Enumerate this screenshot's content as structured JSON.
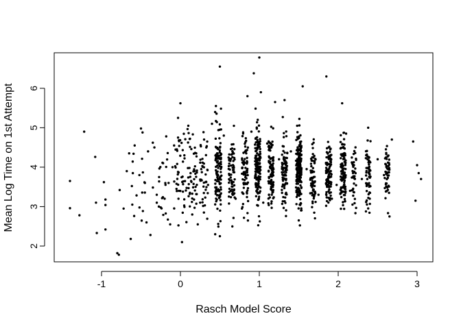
{
  "chart_data": {
    "type": "scatter",
    "title": "",
    "xlabel": "Rasch Model Score",
    "ylabel": "Mean Log Time on 1st Attempt",
    "xlim": [
      -1.6,
      3.2
    ],
    "ylim": [
      1.6,
      6.9
    ],
    "x_ticks": [
      -1,
      0,
      1,
      2,
      3
    ],
    "y_ticks": [
      2,
      3,
      4,
      5,
      6
    ],
    "x_tick_labels": [
      "-1",
      "0",
      "1",
      "2",
      "3"
    ],
    "y_tick_labels": [
      "2",
      "3",
      "4",
      "5",
      "6"
    ],
    "grid": false,
    "legend": "none",
    "point_color": "#000000",
    "points": [
      [
        -1.4,
        3.65
      ],
      [
        -1.4,
        2.96
      ],
      [
        -1.28,
        2.78
      ],
      [
        -1.22,
        4.9
      ],
      [
        -1.08,
        4.26
      ],
      [
        -1.07,
        3.1
      ],
      [
        -1.06,
        2.33
      ],
      [
        -0.97,
        3.62
      ],
      [
        -0.95,
        2.42
      ],
      [
        -0.95,
        3.18
      ],
      [
        -0.95,
        3.04
      ],
      [
        -0.8,
        1.82
      ],
      [
        -0.78,
        1.78
      ],
      [
        -0.77,
        3.42
      ],
      [
        -0.72,
        2.95
      ],
      [
        -0.68,
        3.9
      ],
      [
        -0.65,
        4.35
      ],
      [
        -0.63,
        2.18
      ],
      [
        -0.61,
        3.05
      ],
      [
        -0.58,
        4.55
      ],
      [
        -0.52,
        3.8
      ],
      [
        -0.5,
        4.98
      ],
      [
        -0.48,
        4.88
      ],
      [
        -0.45,
        3.6
      ],
      [
        -0.43,
        2.6
      ],
      [
        -0.41,
        4.4
      ],
      [
        -0.38,
        2.28
      ],
      [
        -0.35,
        4.62
      ],
      [
        -0.33,
        4.5
      ],
      [
        -0.3,
        3.3
      ],
      [
        -0.27,
        3.75
      ],
      [
        -0.25,
        2.98
      ],
      [
        -0.22,
        4.1
      ],
      [
        -0.2,
        3.2
      ],
      [
        -0.18,
        4.78
      ],
      [
        -0.15,
        3.6
      ],
      [
        -0.13,
        2.55
      ],
      [
        -0.1,
        4.0
      ],
      [
        -0.08,
        4.55
      ],
      [
        -0.05,
        3.45
      ],
      [
        -0.03,
        5.25
      ],
      [
        0.0,
        5.62
      ],
      [
        0.02,
        2.1
      ],
      [
        0.05,
        4.3
      ],
      [
        0.1,
        5.05
      ],
      [
        0.12,
        3.35
      ],
      [
        0.15,
        2.8
      ],
      [
        0.18,
        3.9
      ],
      [
        0.2,
        4.35
      ],
      [
        0.22,
        2.55
      ],
      [
        0.25,
        3.1
      ],
      [
        0.3,
        4.7
      ],
      [
        0.35,
        3.55
      ],
      [
        0.4,
        5.1
      ],
      [
        0.45,
        5.55
      ],
      [
        0.5,
        6.55
      ],
      [
        0.5,
        2.25
      ],
      [
        0.55,
        4.8
      ],
      [
        0.62,
        3.8
      ],
      [
        0.7,
        3.2
      ],
      [
        0.78,
        2.95
      ],
      [
        0.85,
        5.8
      ],
      [
        0.9,
        4.9
      ],
      [
        0.93,
        6.38
      ],
      [
        0.98,
        5.2
      ],
      [
        1.0,
        6.78
      ],
      [
        1.02,
        5.9
      ],
      [
        1.05,
        3.1
      ],
      [
        1.1,
        4.6
      ],
      [
        1.15,
        3.5
      ],
      [
        1.2,
        5.65
      ],
      [
        1.25,
        4.2
      ],
      [
        1.3,
        3.8
      ],
      [
        1.32,
        5.7
      ],
      [
        1.4,
        4.4
      ],
      [
        1.48,
        5.05
      ],
      [
        1.5,
        2.65
      ],
      [
        1.55,
        6.05
      ],
      [
        1.6,
        3.95
      ],
      [
        1.7,
        4.1
      ],
      [
        1.75,
        3.3
      ],
      [
        1.85,
        6.3
      ],
      [
        1.88,
        4.5
      ],
      [
        1.92,
        3.2
      ],
      [
        1.98,
        3.55
      ],
      [
        2.05,
        5.62
      ],
      [
        2.1,
        4.85
      ],
      [
        2.15,
        3.4
      ],
      [
        2.2,
        4.05
      ],
      [
        2.3,
        3.7
      ],
      [
        2.38,
        5.0
      ],
      [
        2.4,
        3.2
      ],
      [
        2.5,
        4.2
      ],
      [
        2.58,
        3.8
      ],
      [
        2.65,
        2.75
      ],
      [
        2.68,
        4.7
      ],
      [
        2.95,
        4.65
      ],
      [
        2.98,
        3.15
      ],
      [
        3.0,
        4.05
      ],
      [
        3.02,
        3.85
      ],
      [
        3.05,
        3.7
      ]
    ],
    "clusters": [
      {
        "x": -0.55,
        "spread": 0.1,
        "y_mean": 3.6,
        "y_sd": 0.6,
        "n": 14
      },
      {
        "x": -0.25,
        "spread": 0.1,
        "y_mean": 3.65,
        "y_sd": 0.55,
        "n": 18
      },
      {
        "x": 0.0,
        "spread": 0.08,
        "y_mean": 3.85,
        "y_sd": 0.55,
        "n": 45
      },
      {
        "x": 0.15,
        "spread": 0.06,
        "y_mean": 3.8,
        "y_sd": 0.55,
        "n": 45
      },
      {
        "x": 0.3,
        "spread": 0.05,
        "y_mean": 3.8,
        "y_sd": 0.5,
        "n": 40
      },
      {
        "x": 0.48,
        "spread": 0.04,
        "y_mean": 3.9,
        "y_sd": 0.55,
        "n": 120
      },
      {
        "x": 0.65,
        "spread": 0.04,
        "y_mean": 3.8,
        "y_sd": 0.45,
        "n": 70
      },
      {
        "x": 0.82,
        "spread": 0.04,
        "y_mean": 3.8,
        "y_sd": 0.45,
        "n": 70
      },
      {
        "x": 0.98,
        "spread": 0.035,
        "y_mean": 3.95,
        "y_sd": 0.5,
        "n": 160
      },
      {
        "x": 1.15,
        "spread": 0.035,
        "y_mean": 3.9,
        "y_sd": 0.45,
        "n": 100
      },
      {
        "x": 1.32,
        "spread": 0.035,
        "y_mean": 3.85,
        "y_sd": 0.45,
        "n": 80
      },
      {
        "x": 1.5,
        "spread": 0.035,
        "y_mean": 3.95,
        "y_sd": 0.5,
        "n": 170
      },
      {
        "x": 1.68,
        "spread": 0.035,
        "y_mean": 3.75,
        "y_sd": 0.4,
        "n": 70
      },
      {
        "x": 1.88,
        "spread": 0.035,
        "y_mean": 3.75,
        "y_sd": 0.4,
        "n": 110
      },
      {
        "x": 2.06,
        "spread": 0.035,
        "y_mean": 3.85,
        "y_sd": 0.45,
        "n": 110
      },
      {
        "x": 2.2,
        "spread": 0.03,
        "y_mean": 3.75,
        "y_sd": 0.35,
        "n": 40
      },
      {
        "x": 2.38,
        "spread": 0.03,
        "y_mean": 3.8,
        "y_sd": 0.4,
        "n": 60
      },
      {
        "x": 2.62,
        "spread": 0.03,
        "y_mean": 3.75,
        "y_sd": 0.35,
        "n": 50
      }
    ]
  }
}
